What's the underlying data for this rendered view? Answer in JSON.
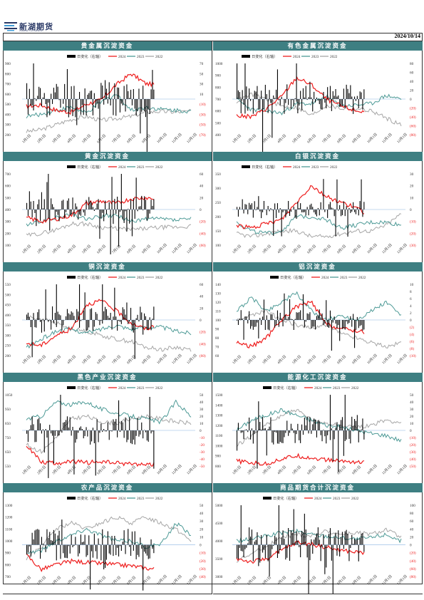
{
  "header": {
    "brand": "新湖期货",
    "brand_sub": "XINHU FUTURES",
    "date": "2024/10/14"
  },
  "legend_labels": [
    "日变化（右轴）",
    "2024",
    "2023",
    "2022"
  ],
  "colors": {
    "title_bg": "#3e7f82",
    "series_2024": "#ee1c1c",
    "series_2023": "#4d9a96",
    "series_2022": "#a6a6a6",
    "bars": "#000000",
    "zero_line": "#8ab4e0",
    "neg_axis": "#ee1c1c"
  },
  "x_ticks": [
    "1月1日",
    "2月1日",
    "3月1日",
    "4月1日",
    "5月1日",
    "6月1日",
    "7月1日",
    "8月1日",
    "9月1日",
    "10月1日",
    "11月1日",
    "12月1日"
  ],
  "chart_data": [
    {
      "type": "line",
      "title": "贵金属沉淀资金",
      "left_ticks": [
        "900",
        "800",
        "700",
        "600",
        "500",
        "400",
        "300",
        "200"
      ],
      "left_range": [
        200,
        900
      ],
      "right_ticks": [
        "70",
        "50",
        "30",
        "10",
        "(10)",
        "(30)",
        "(50)",
        "(70)"
      ],
      "right_range": [
        -70,
        70
      ],
      "legend_x": 90,
      "series": [
        {
          "name": "2024",
          "values": [
            480,
            490,
            440,
            420,
            500,
            540,
            690,
            800,
            700,
            690,
            650,
            700
          ]
        },
        {
          "name": "2023",
          "values": [
            380,
            400,
            440,
            470,
            410,
            520,
            600,
            440,
            470,
            450,
            440,
            430
          ]
        },
        {
          "name": "2022",
          "values": [
            230,
            250,
            300,
            350,
            380,
            340,
            360,
            380,
            420,
            430,
            420,
            430
          ]
        }
      ],
      "bar_amp": 55
    },
    {
      "type": "line",
      "title": "有色金属沉淀资金",
      "left_ticks": [
        "1000",
        "900",
        "800",
        "700",
        "600",
        "500",
        "400"
      ],
      "left_range": [
        400,
        1000
      ],
      "right_ticks": [
        "80",
        "60",
        "40",
        "20",
        "0",
        "(20)",
        "(40)",
        "(60)",
        "(80)"
      ],
      "right_range": [
        -80,
        80
      ],
      "legend_x": 40,
      "series": [
        {
          "name": "2024",
          "values": [
            560,
            550,
            620,
            720,
            880,
            820,
            700,
            640,
            600,
            590,
            580,
            600
          ]
        },
        {
          "name": "2023",
          "values": [
            700,
            610,
            600,
            580,
            660,
            660,
            720,
            640,
            650,
            660,
            730,
            700
          ]
        },
        {
          "name": "2022",
          "values": [
            680,
            740,
            700,
            640,
            630,
            560,
            650,
            620,
            620,
            600,
            540,
            480
          ]
        }
      ],
      "bar_amp": 45
    },
    {
      "type": "line",
      "title": "黄金沉淀资金",
      "left_ticks": [
        "700",
        "600",
        "500",
        "400",
        "300",
        "200",
        "100"
      ],
      "left_range": [
        100,
        700
      ],
      "right_ticks": [
        "60",
        "40",
        "20",
        "0",
        "(20)",
        "(40)",
        "(60)"
      ],
      "right_range": [
        -60,
        60
      ],
      "legend_x": 90,
      "series": [
        {
          "name": "2024",
          "values": [
            330,
            300,
            320,
            350,
            450,
            470,
            450,
            490,
            500,
            480,
            510,
            500
          ]
        },
        {
          "name": "2023",
          "values": [
            270,
            300,
            330,
            360,
            320,
            340,
            350,
            300,
            320,
            320,
            310,
            320
          ]
        },
        {
          "name": "2022",
          "values": [
            180,
            200,
            230,
            280,
            280,
            250,
            240,
            230,
            240,
            250,
            250,
            260
          ]
        }
      ],
      "bar_amp": 40
    },
    {
      "type": "line",
      "title": "白银沉淀资金",
      "left_ticks": [
        "350",
        "300",
        "250",
        "200",
        "150",
        "100"
      ],
      "left_range": [
        100,
        350
      ],
      "right_ticks": [
        "30",
        "20",
        "10",
        "0",
        "(10)",
        "(20)",
        "(30)"
      ],
      "right_range": [
        -30,
        30
      ],
      "legend_x": 40,
      "series": [
        {
          "name": "2024",
          "values": [
            170,
            160,
            175,
            190,
            250,
            310,
            270,
            250,
            230,
            200,
            190,
            200
          ]
        },
        {
          "name": "2023",
          "values": [
            180,
            150,
            140,
            150,
            200,
            200,
            190,
            160,
            170,
            180,
            180,
            170
          ]
        },
        {
          "name": "2022",
          "values": [
            140,
            130,
            140,
            150,
            150,
            130,
            130,
            140,
            150,
            150,
            170,
            210
          ]
        }
      ],
      "bar_amp": 25
    },
    {
      "type": "line",
      "title": "铜沉淀资金",
      "left_ticks": [
        "550",
        "500",
        "450",
        "400",
        "350",
        "300",
        "250",
        "200"
      ],
      "left_range": [
        200,
        550
      ],
      "right_ticks": [
        "60",
        "40",
        "20",
        "0",
        "(20)",
        "(40)",
        "(60)"
      ],
      "right_range": [
        -60,
        60
      ],
      "legend_x": 90,
      "series": [
        {
          "name": "2024",
          "values": [
            260,
            250,
            300,
            330,
            450,
            470,
            420,
            360,
            330,
            360,
            370,
            360
          ]
        },
        {
          "name": "2023",
          "values": [
            240,
            280,
            320,
            330,
            310,
            330,
            350,
            330,
            340,
            340,
            320,
            310
          ]
        },
        {
          "name": "2022",
          "values": [
            390,
            380,
            360,
            330,
            320,
            300,
            280,
            270,
            240,
            230,
            240,
            230
          ]
        }
      ],
      "bar_amp": 38
    },
    {
      "type": "line",
      "title": "铝沉淀资金",
      "left_ticks": [
        "140",
        "130",
        "120",
        "110",
        "100",
        "90",
        "80",
        "70",
        "60"
      ],
      "left_range": [
        60,
        140
      ],
      "right_ticks": [
        "10",
        "8",
        "6",
        "4",
        "2",
        "0",
        "(2)",
        "(4)",
        "(6)",
        "(8)",
        "(10)"
      ],
      "right_range": [
        -10,
        10
      ],
      "legend_x": 80,
      "series": [
        {
          "name": "2024",
          "values": [
            75,
            70,
            80,
            100,
            115,
            120,
            95,
            90,
            88,
            85,
            82,
            80
          ]
        },
        {
          "name": "2023",
          "values": [
            110,
            125,
            110,
            120,
            130,
            110,
            100,
            105,
            100,
            110,
            120,
            105
          ]
        },
        {
          "name": "2022",
          "values": [
            100,
            105,
            110,
            100,
            95,
            90,
            95,
            85,
            80,
            75,
            70,
            75
          ]
        }
      ],
      "bar_amp": 30
    },
    {
      "type": "line",
      "title": "黑色产业沉淀资金",
      "left_ticks": [
        "1050",
        "950",
        "850",
        "750",
        "650",
        "550"
      ],
      "left_range": [
        550,
        1050
      ],
      "right_ticks": [
        "50",
        "40",
        "30",
        "20",
        "10",
        "0",
        "-10",
        "-20",
        "-30",
        "-40",
        "-50"
      ],
      "right_range": [
        -50,
        50
      ],
      "legend_x": 90,
      "series": [
        {
          "name": "2024",
          "values": [
            700,
            580,
            570,
            580,
            575,
            580,
            570,
            565,
            560,
            560,
            580,
            600
          ]
        },
        {
          "name": "2023",
          "values": [
            880,
            900,
            1000,
            980,
            1000,
            950,
            920,
            900,
            880,
            860,
            1000,
            900
          ]
        },
        {
          "name": "2022",
          "values": [
            700,
            650,
            750,
            880,
            900,
            860,
            850,
            880,
            900,
            880,
            860,
            850
          ]
        }
      ],
      "bar_amp": 40
    },
    {
      "type": "line",
      "title": "能源化工沉淀资金",
      "left_ticks": [
        "1500",
        "1400",
        "1300",
        "1200",
        "1100",
        "1000",
        "900",
        "800"
      ],
      "left_range": [
        800,
        1500
      ],
      "right_ticks": [
        "50",
        "40",
        "30",
        "20",
        "10",
        "0",
        "(10)",
        "(20)",
        "(30)",
        "(40)",
        "(50)"
      ],
      "right_range": [
        -50,
        50
      ],
      "legend_x": 70,
      "series": [
        {
          "name": "2024",
          "values": [
            850,
            830,
            820,
            870,
            900,
            880,
            860,
            850,
            840,
            830,
            820,
            820
          ]
        },
        {
          "name": "2023",
          "values": [
            1150,
            1250,
            1300,
            1350,
            1300,
            1250,
            1200,
            1180,
            1150,
            1120,
            1100,
            1050
          ]
        },
        {
          "name": "2022",
          "values": [
            1000,
            1100,
            1200,
            1300,
            1350,
            1250,
            1220,
            1200,
            1180,
            1200,
            1250,
            1220
          ]
        }
      ],
      "bar_amp": 40
    },
    {
      "type": "line",
      "title": "农产品沉淀资金",
      "left_ticks": [
        "1300",
        "1200",
        "1100",
        "1000",
        "900",
        "800",
        "700"
      ],
      "left_range": [
        700,
        1300
      ],
      "right_ticks": [
        "50",
        "40",
        "30",
        "20",
        "10",
        "0",
        "(10)",
        "(20)",
        "(30)",
        "(40)"
      ],
      "right_range": [
        -40,
        50
      ],
      "legend_x": 90,
      "series": [
        {
          "name": "2024",
          "values": [
            880,
            760,
            800,
            830,
            820,
            810,
            800,
            790,
            770,
            760,
            750,
            760
          ]
        },
        {
          "name": "2023",
          "values": [
            900,
            920,
            1000,
            1050,
            1100,
            1050,
            1000,
            1000,
            950,
            970,
            1150,
            1050
          ]
        },
        {
          "name": "2022",
          "values": [
            850,
            950,
            1100,
            1150,
            1100,
            1150,
            1200,
            1150,
            1200,
            1150,
            1100,
            1000
          ]
        }
      ],
      "bar_amp": 45
    },
    {
      "type": "line",
      "title": "商品期货合计沉淀资金",
      "left_ticks": [
        "5000",
        "4500",
        "4000",
        "3500",
        "3000"
      ],
      "left_range": [
        2800,
        5000
      ],
      "right_ticks": [
        "100",
        "80",
        "60",
        "40",
        "20",
        "0",
        "(20)",
        "(40)",
        "(60)",
        "(80)"
      ],
      "right_range": [
        -80,
        100
      ],
      "legend_x": 70,
      "series": [
        {
          "name": "2024",
          "values": [
            3350,
            3250,
            3350,
            3600,
            3850,
            3800,
            3700,
            3600,
            3550,
            3500,
            3450,
            3500
          ]
        },
        {
          "name": "2023",
          "values": [
            3900,
            3950,
            4050,
            4150,
            4200,
            4100,
            4050,
            4000,
            3950,
            4000,
            4100,
            3900
          ]
        },
        {
          "name": "2022",
          "values": [
            3300,
            3500,
            3750,
            4000,
            4100,
            4050,
            4200,
            4100,
            4150,
            4100,
            4250,
            4000
          ]
        }
      ],
      "bar_amp": 50
    }
  ]
}
